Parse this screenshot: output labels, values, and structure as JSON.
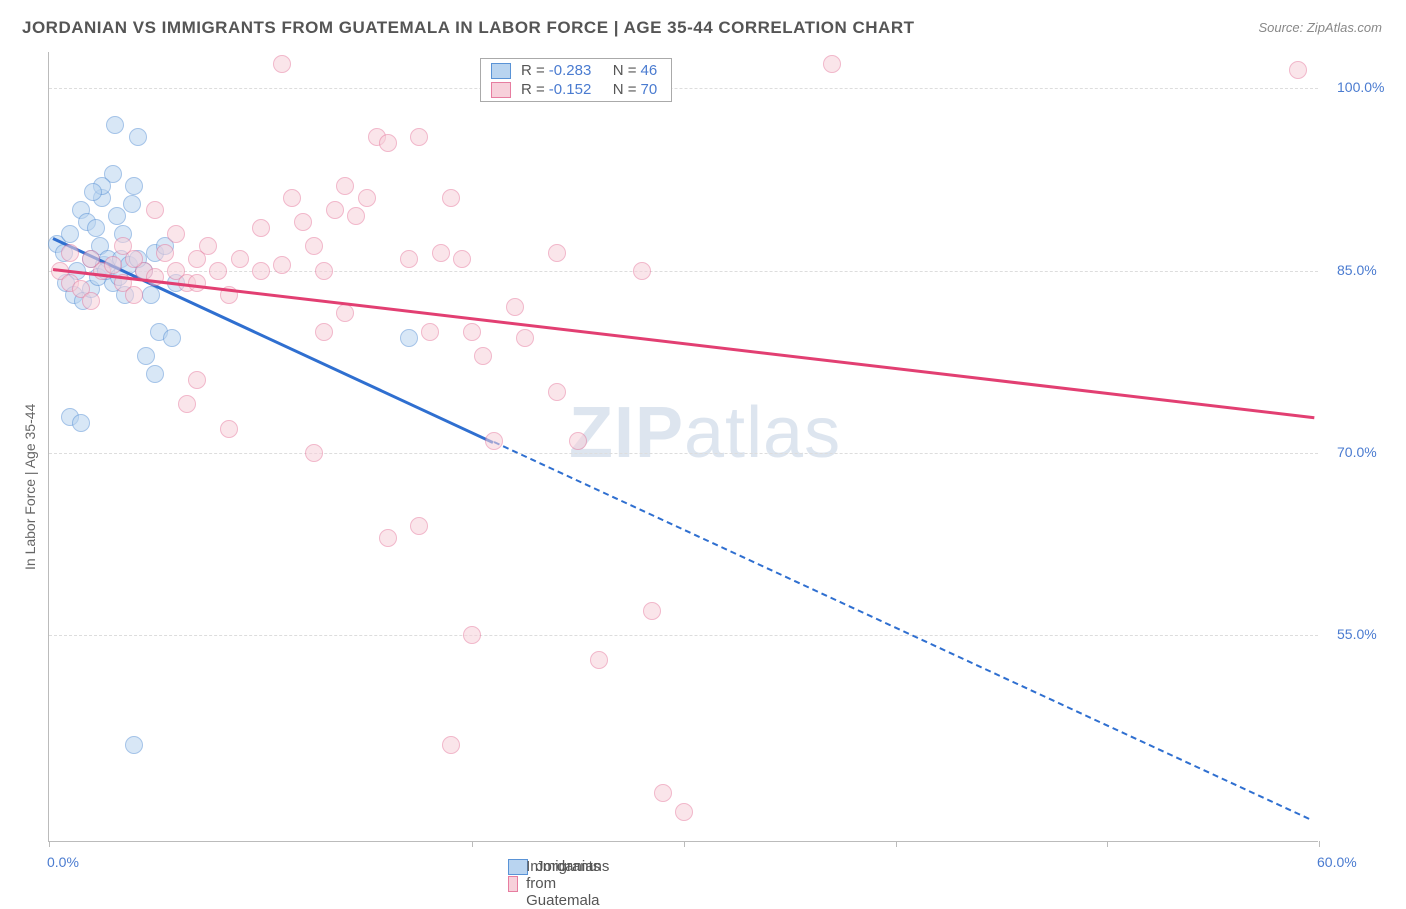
{
  "title": "JORDANIAN VS IMMIGRANTS FROM GUATEMALA IN LABOR FORCE | AGE 35-44 CORRELATION CHART",
  "source_prefix": "Source: ",
  "source_name": "ZipAtlas.com",
  "y_axis_label": "In Labor Force | Age 35-44",
  "watermark": {
    "bold": "ZIP",
    "rest": "atlas"
  },
  "chart": {
    "type": "scatter",
    "xlim": [
      0,
      60
    ],
    "ylim": [
      38,
      103
    ],
    "x_ticks": [
      0,
      20,
      30,
      40,
      50,
      60
    ],
    "x_tick_labels": {
      "0": "0.0%",
      "60": "60.0%"
    },
    "y_gridlines": [
      55,
      70,
      85,
      100
    ],
    "y_tick_labels": {
      "55": "55.0%",
      "70": "70.0%",
      "85": "85.0%",
      "100": "100.0%"
    },
    "background_color": "#ffffff",
    "grid_color": "#dddddd",
    "axis_color": "#bbbbbb",
    "tick_label_color": "#4a7bd0",
    "point_radius": 9,
    "point_opacity": 0.55,
    "series": [
      {
        "id": "jordanians",
        "label": "Jordanians",
        "fill": "#b9d4f0",
        "stroke": "#5a93d6",
        "trend_color": "#2f6fd0",
        "trend_width": 3,
        "R": "-0.283",
        "N": "46",
        "trend_solid": {
          "x1": 0.2,
          "y1": 87.8,
          "x2": 21,
          "y2": 71
        },
        "trend_dashed": {
          "x1": 21,
          "y1": 71,
          "x2": 59.5,
          "y2": 40
        },
        "points": [
          [
            0.4,
            87.2
          ],
          [
            0.7,
            86.5
          ],
          [
            1.0,
            88.0
          ],
          [
            1.3,
            85.0
          ],
          [
            1.5,
            90.0
          ],
          [
            1.8,
            89.0
          ],
          [
            2.0,
            86.0
          ],
          [
            2.2,
            88.5
          ],
          [
            2.5,
            91.0
          ],
          [
            2.4,
            87.0
          ],
          [
            2.6,
            85.5
          ],
          [
            2.8,
            86.0
          ],
          [
            3.0,
            84.0
          ],
          [
            3.2,
            89.5
          ],
          [
            3.5,
            88.0
          ],
          [
            3.4,
            86.0
          ],
          [
            3.6,
            83.0
          ],
          [
            3.1,
            97.0
          ],
          [
            4.2,
            96.0
          ],
          [
            3.0,
            93.0
          ],
          [
            2.5,
            92.0
          ],
          [
            4.0,
            92.0
          ],
          [
            4.5,
            85.0
          ],
          [
            4.8,
            83.0
          ],
          [
            5.0,
            86.5
          ],
          [
            5.5,
            87.0
          ],
          [
            6.0,
            84.0
          ],
          [
            5.2,
            80.0
          ],
          [
            4.6,
            78.0
          ],
          [
            5.8,
            79.5
          ],
          [
            5.0,
            76.5
          ],
          [
            1.0,
            73.0
          ],
          [
            1.5,
            72.5
          ],
          [
            4.0,
            46.0
          ],
          [
            0.8,
            84.0
          ],
          [
            1.2,
            83.0
          ],
          [
            1.6,
            82.5
          ],
          [
            2.0,
            83.5
          ],
          [
            2.3,
            84.5
          ],
          [
            2.7,
            85.0
          ],
          [
            3.3,
            84.5
          ],
          [
            3.8,
            85.5
          ],
          [
            4.2,
            86.0
          ],
          [
            17.0,
            79.5
          ],
          [
            3.9,
            90.5
          ],
          [
            2.1,
            91.5
          ]
        ]
      },
      {
        "id": "guatemala",
        "label": "Immigrants from Guatemala",
        "fill": "#f7d0da",
        "stroke": "#e77da0",
        "trend_color": "#e23f72",
        "trend_width": 3,
        "R": "-0.152",
        "N": "70",
        "trend_solid": {
          "x1": 0.2,
          "y1": 85.2,
          "x2": 59.8,
          "y2": 73.0
        },
        "trend_dashed": null,
        "points": [
          [
            0.5,
            85.0
          ],
          [
            1.0,
            84.0
          ],
          [
            1.5,
            83.5
          ],
          [
            2.0,
            86.0
          ],
          [
            2.5,
            85.0
          ],
          [
            3.0,
            85.5
          ],
          [
            3.5,
            84.0
          ],
          [
            4.0,
            83.0
          ],
          [
            4.5,
            85.0
          ],
          [
            5.0,
            84.5
          ],
          [
            5.5,
            86.5
          ],
          [
            6.0,
            85.0
          ],
          [
            6.5,
            84.0
          ],
          [
            7.0,
            86.0
          ],
          [
            7.5,
            87.0
          ],
          [
            8.0,
            85.0
          ],
          [
            8.5,
            83.0
          ],
          [
            9.0,
            86.0
          ],
          [
            10.0,
            85.0
          ],
          [
            10.0,
            88.5
          ],
          [
            11.5,
            91.0
          ],
          [
            11.0,
            102.0
          ],
          [
            12.0,
            89.0
          ],
          [
            12.5,
            87.0
          ],
          [
            13.0,
            85.0
          ],
          [
            13.5,
            90.0
          ],
          [
            14.0,
            92.0
          ],
          [
            14.5,
            89.5
          ],
          [
            15.0,
            91.0
          ],
          [
            15.5,
            96.0
          ],
          [
            16.0,
            95.5
          ],
          [
            13.0,
            80.0
          ],
          [
            14.0,
            81.5
          ],
          [
            17.0,
            86.0
          ],
          [
            17.5,
            96.0
          ],
          [
            18.0,
            80.0
          ],
          [
            18.5,
            86.5
          ],
          [
            19.0,
            91.0
          ],
          [
            19.5,
            86.0
          ],
          [
            20.0,
            80.0
          ],
          [
            20.5,
            78.0
          ],
          [
            21.0,
            71.0
          ],
          [
            7.0,
            76.0
          ],
          [
            6.5,
            74.0
          ],
          [
            8.5,
            72.0
          ],
          [
            12.5,
            70.0
          ],
          [
            16.0,
            63.0
          ],
          [
            17.5,
            64.0
          ],
          [
            19.0,
            46.0
          ],
          [
            20.0,
            55.0
          ],
          [
            22.0,
            82.0
          ],
          [
            22.5,
            79.5
          ],
          [
            24.0,
            86.5
          ],
          [
            24.0,
            75.0
          ],
          [
            25.0,
            71.0
          ],
          [
            26.0,
            53.0
          ],
          [
            28.0,
            85.0
          ],
          [
            28.5,
            57.0
          ],
          [
            29.0,
            42.0
          ],
          [
            30.0,
            40.5
          ],
          [
            37.0,
            102.0
          ],
          [
            59.0,
            101.5
          ],
          [
            5.0,
            90.0
          ],
          [
            11.0,
            85.5
          ],
          [
            6.0,
            88.0
          ],
          [
            7.0,
            84.0
          ],
          [
            3.5,
            87.0
          ],
          [
            4.0,
            86.0
          ],
          [
            2.0,
            82.5
          ],
          [
            1.0,
            86.5
          ]
        ]
      }
    ]
  },
  "corr_box_labels": {
    "R": "R =",
    "N": "N ="
  },
  "legend_bottom": [
    {
      "series": "jordanians"
    },
    {
      "series": "guatemala"
    }
  ]
}
